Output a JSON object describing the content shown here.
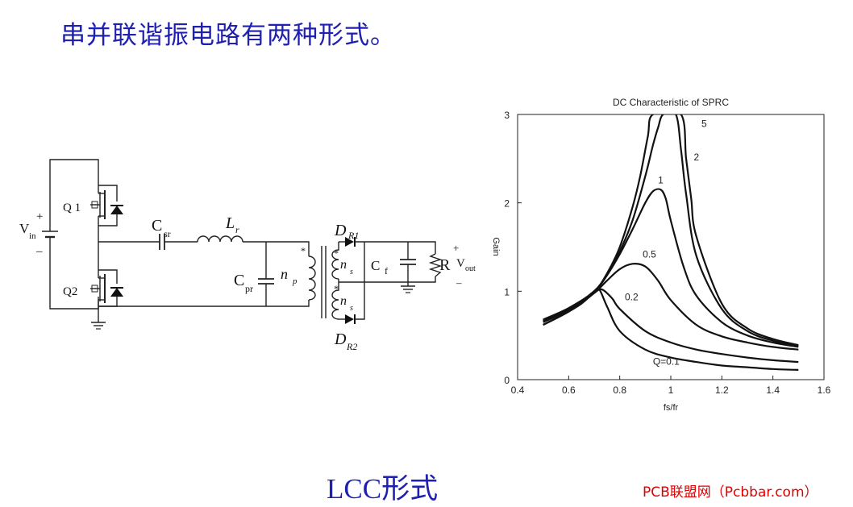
{
  "heading": "串并联谐振电路有两种形式。",
  "caption": "LCC形式",
  "watermark": "PCB联盟网（Pcbbar.com）",
  "circuit": {
    "q1": "Q 1",
    "q2": "Q2",
    "vin_main": "V",
    "vin_sub": "in",
    "vin_plus": "+",
    "vin_minus": "–",
    "csr_main": "C",
    "csr_sub": "sr",
    "lr_main": "L",
    "lr_sub": "r",
    "cpr_main": "C",
    "cpr_sub": "pr",
    "np_main": "n",
    "np_sub": "p",
    "ns_main": "n",
    "ns_sub": "s",
    "dot": "*",
    "dr_main": "D",
    "dr1_sub": "R1",
    "dr2_sub": "R2",
    "cf_main": "C",
    "cf_sub": "f",
    "r": "R",
    "vout_main": "V",
    "vout_sub": "out",
    "vout_plus": "+",
    "vout_minus": "–"
  },
  "chart_data": {
    "type": "line",
    "title": "DC Characteristic of SPRC",
    "xlabel": "fs/fr",
    "ylabel": "Gain",
    "xlim": [
      0.4,
      1.6
    ],
    "ylim": [
      0,
      3
    ],
    "xticks": [
      "0.4",
      "0.6",
      "0.8",
      "1",
      "1.2",
      "1.4",
      "1.6"
    ],
    "yticks": [
      "0",
      "1",
      "2",
      "3"
    ],
    "series": [
      {
        "name": "Q=0.1",
        "x": [
          0.5,
          0.6,
          0.65,
          0.7,
          0.72,
          0.75,
          0.8,
          0.9,
          1.0,
          1.1,
          1.2,
          1.3,
          1.4,
          1.5
        ],
        "y": [
          0.66,
          0.79,
          0.88,
          1.0,
          1.02,
          0.83,
          0.55,
          0.34,
          0.25,
          0.2,
          0.16,
          0.14,
          0.12,
          0.11
        ]
      },
      {
        "name": "0.2",
        "x": [
          0.5,
          0.6,
          0.65,
          0.7,
          0.73,
          0.77,
          0.8,
          0.9,
          1.0,
          1.1,
          1.2,
          1.3,
          1.4,
          1.5
        ],
        "y": [
          0.62,
          0.77,
          0.86,
          0.98,
          1.02,
          0.92,
          0.8,
          0.55,
          0.42,
          0.34,
          0.29,
          0.25,
          0.22,
          0.2
        ]
      },
      {
        "name": "0.5",
        "x": [
          0.5,
          0.6,
          0.7,
          0.75,
          0.8,
          0.85,
          0.9,
          0.95,
          1.0,
          1.1,
          1.2,
          1.3,
          1.4,
          1.5
        ],
        "y": [
          0.62,
          0.77,
          0.98,
          1.12,
          1.25,
          1.31,
          1.28,
          1.12,
          0.9,
          0.62,
          0.49,
          0.42,
          0.37,
          0.34
        ]
      },
      {
        "name": "1",
        "x": [
          0.5,
          0.6,
          0.7,
          0.75,
          0.8,
          0.85,
          0.9,
          0.93,
          0.96,
          0.98,
          1.0,
          1.05,
          1.1,
          1.2,
          1.3,
          1.4,
          1.5
        ],
        "y": [
          0.65,
          0.79,
          1.0,
          1.18,
          1.42,
          1.7,
          2.0,
          2.13,
          2.15,
          2.05,
          1.8,
          1.28,
          0.95,
          0.65,
          0.5,
          0.42,
          0.37
        ]
      },
      {
        "name": "2",
        "x": [
          0.5,
          0.6,
          0.7,
          0.75,
          0.8,
          0.85,
          0.9,
          0.93,
          0.95,
          0.97,
          1.02,
          1.04,
          1.06,
          1.1,
          1.2,
          1.3,
          1.4,
          1.5
        ],
        "y": [
          0.67,
          0.8,
          1.0,
          1.18,
          1.45,
          1.8,
          2.3,
          2.65,
          2.85,
          3.0,
          3.0,
          2.6,
          2.1,
          1.4,
          0.8,
          0.55,
          0.44,
          0.38
        ]
      },
      {
        "name": "5",
        "x": [
          0.5,
          0.6,
          0.7,
          0.75,
          0.8,
          0.85,
          0.88,
          0.91,
          0.93,
          1.04,
          1.06,
          1.08,
          1.1,
          1.2,
          1.3,
          1.4,
          1.5
        ],
        "y": [
          0.68,
          0.81,
          1.0,
          1.2,
          1.5,
          1.95,
          2.3,
          2.75,
          3.0,
          3.0,
          2.5,
          2.05,
          1.62,
          0.86,
          0.58,
          0.46,
          0.39
        ]
      }
    ],
    "label_points": {
      "Q=0.1": [
        0.93,
        0.17
      ],
      "0.2": [
        0.82,
        0.9
      ],
      "0.5": [
        0.89,
        1.38
      ],
      "1": [
        0.95,
        2.22
      ],
      "2": [
        1.09,
        2.48
      ],
      "5": [
        1.12,
        2.86
      ]
    }
  }
}
